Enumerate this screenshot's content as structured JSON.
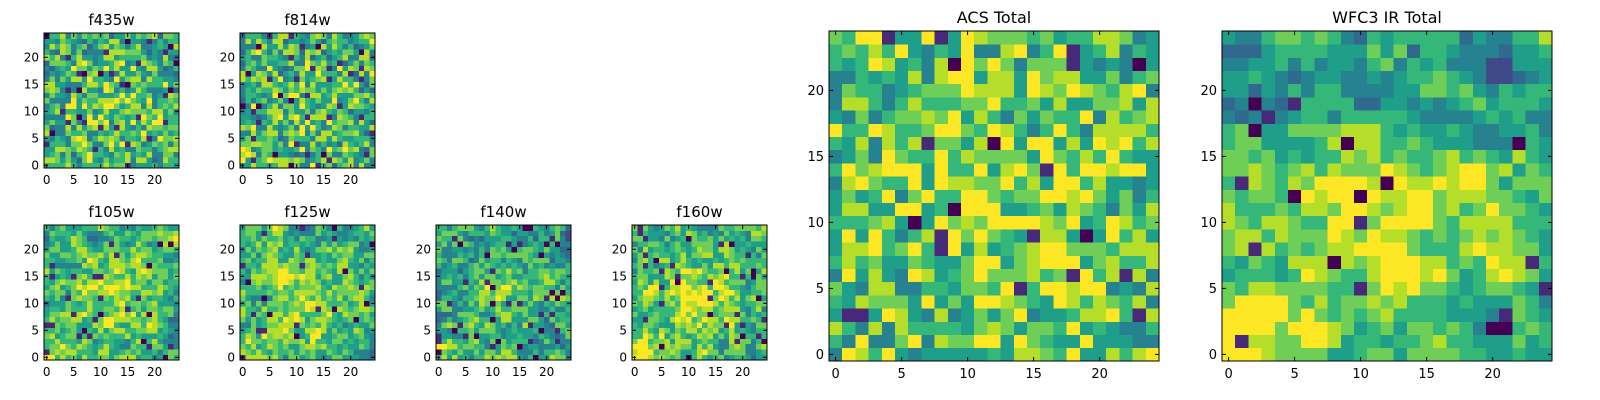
{
  "figure": {
    "description": "Eight heatmap panels of per-pixel values for HST filters"
  },
  "colors": {
    "colormap": [
      "#440154",
      "#482878",
      "#3e4a89",
      "#31688e",
      "#26828e",
      "#1f9e89",
      "#35b779",
      "#6ece58",
      "#b5de2b",
      "#fde725"
    ],
    "axes_edge": "#000000",
    "background": "#ffffff"
  },
  "chart_data": [
    {
      "type": "heatmap",
      "title": "f435w",
      "grid_size": [
        25,
        25
      ],
      "xlim": [
        -0.5,
        24.5
      ],
      "ylim": [
        -0.5,
        24.5
      ],
      "xticks": [
        0,
        5,
        10,
        15,
        20
      ],
      "yticks": [
        0,
        5,
        10,
        15,
        20
      ],
      "xticklabels": [
        "0",
        "5",
        "10",
        "15",
        "20"
      ],
      "yticklabels": [
        "0",
        "5",
        "10",
        "15",
        "20"
      ],
      "colormap": "viridis",
      "texture": "fine noise, mostly high values, center slightly brighter",
      "seed": 11,
      "smooth": 0,
      "lowFrac": 0.06,
      "centerBoost": 0.15
    },
    {
      "type": "heatmap",
      "title": "f814w",
      "grid_size": [
        25,
        25
      ],
      "xlim": [
        -0.5,
        24.5
      ],
      "ylim": [
        -0.5,
        24.5
      ],
      "xticks": [
        0,
        5,
        10,
        15,
        20
      ],
      "yticks": [
        0,
        5,
        10,
        15,
        20
      ],
      "xticklabels": [
        "0",
        "5",
        "10",
        "15",
        "20"
      ],
      "yticklabels": [
        "0",
        "5",
        "10",
        "15",
        "20"
      ],
      "colormap": "viridis",
      "texture": "fine noise, mostly high values",
      "seed": 23,
      "smooth": 0,
      "lowFrac": 0.06,
      "centerBoost": 0.08,
      "cornerBoost": 0.15
    },
    {
      "type": "heatmap",
      "title": "f105w",
      "grid_size": [
        25,
        25
      ],
      "xlim": [
        -0.5,
        24.5
      ],
      "ylim": [
        -0.5,
        24.5
      ],
      "xticks": [
        0,
        5,
        10,
        15,
        20
      ],
      "yticks": [
        0,
        5,
        10,
        15,
        20
      ],
      "xticklabels": [
        "0",
        "5",
        "10",
        "15",
        "20"
      ],
      "yticklabels": [
        "0",
        "5",
        "10",
        "15",
        "20"
      ],
      "colormap": "viridis",
      "texture": "smooth structure, bright center and lower-left corner",
      "seed": 37,
      "smooth": 1,
      "lowFrac": 0.04,
      "centerBoost": 0.25,
      "cornerBoost": 0.3
    },
    {
      "type": "heatmap",
      "title": "f125w",
      "grid_size": [
        25,
        25
      ],
      "xlim": [
        -0.5,
        24.5
      ],
      "ylim": [
        -0.5,
        24.5
      ],
      "xticks": [
        0,
        5,
        10,
        15,
        20
      ],
      "yticks": [
        0,
        5,
        10,
        15,
        20
      ],
      "xticklabels": [
        "0",
        "5",
        "10",
        "15",
        "20"
      ],
      "yticklabels": [
        "0",
        "5",
        "10",
        "15",
        "20"
      ],
      "colormap": "viridis",
      "texture": "smooth structure, bright center and lower-left corner",
      "seed": 41,
      "smooth": 1,
      "lowFrac": 0.05,
      "centerBoost": 0.25,
      "cornerBoost": 0.3
    },
    {
      "type": "heatmap",
      "title": "f140w",
      "grid_size": [
        25,
        25
      ],
      "xlim": [
        -0.5,
        24.5
      ],
      "ylim": [
        -0.5,
        24.5
      ],
      "xticks": [
        0,
        5,
        10,
        15,
        20
      ],
      "yticks": [
        0,
        5,
        10,
        15,
        20
      ],
      "xticklabels": [
        "0",
        "5",
        "10",
        "15",
        "20"
      ],
      "yticklabels": [
        "0",
        "5",
        "10",
        "15",
        "20"
      ],
      "colormap": "viridis",
      "texture": "smooth structure, darker overall, bright center and lower-left corner",
      "seed": 53,
      "smooth": 1,
      "lowFrac": 0.06,
      "centerBoost": 0.2,
      "cornerBoost": 0.3,
      "bias": -0.08
    },
    {
      "type": "heatmap",
      "title": "f160w",
      "grid_size": [
        25,
        25
      ],
      "xlim": [
        -0.5,
        24.5
      ],
      "ylim": [
        -0.5,
        24.5
      ],
      "xticks": [
        0,
        5,
        10,
        15,
        20
      ],
      "yticks": [
        0,
        5,
        10,
        15,
        20
      ],
      "xticklabels": [
        "0",
        "5",
        "10",
        "15",
        "20"
      ],
      "yticklabels": [
        "0",
        "5",
        "10",
        "15",
        "20"
      ],
      "colormap": "viridis",
      "texture": "smooth structure, bright center and bright lower-left region",
      "seed": 67,
      "smooth": 1,
      "lowFrac": 0.05,
      "centerBoost": 0.25,
      "cornerBoost": 0.45
    },
    {
      "type": "heatmap",
      "title": "ACS Total",
      "grid_size": [
        25,
        25
      ],
      "xlim": [
        -0.5,
        24.5
      ],
      "ylim": [
        -0.5,
        24.5
      ],
      "xticks": [
        0,
        5,
        10,
        15,
        20
      ],
      "yticks": [
        0,
        5,
        10,
        15,
        20
      ],
      "xticklabels": [
        "0",
        "5",
        "10",
        "15",
        "20"
      ],
      "yticklabels": [
        "0",
        "5",
        "10",
        "15",
        "20"
      ],
      "colormap": "viridis",
      "texture": "blocky noise, mostly green-yellow, center brighter, scattered dark pixels",
      "seed": 79,
      "smooth": 0,
      "lowFrac": 0.03,
      "centerBoost": 0.2,
      "bias": 0.05
    },
    {
      "type": "heatmap",
      "title": "WFC3 IR Total",
      "grid_size": [
        25,
        25
      ],
      "xlim": [
        -0.5,
        24.5
      ],
      "ylim": [
        -0.5,
        24.5
      ],
      "xticks": [
        0,
        5,
        10,
        15,
        20
      ],
      "yticks": [
        0,
        5,
        10,
        15,
        20
      ],
      "xticklabels": [
        "0",
        "5",
        "10",
        "15",
        "20"
      ],
      "yticklabels": [
        "0",
        "5",
        "10",
        "15",
        "20"
      ],
      "colormap": "viridis",
      "texture": "smooth structure, bright center blob and bright lower-left corner, dark pixels near top",
      "seed": 97,
      "smooth": 2,
      "lowFrac": 0.04,
      "centerBoost": 0.35,
      "cornerBoost": 0.55,
      "topDark": 0.25
    }
  ]
}
